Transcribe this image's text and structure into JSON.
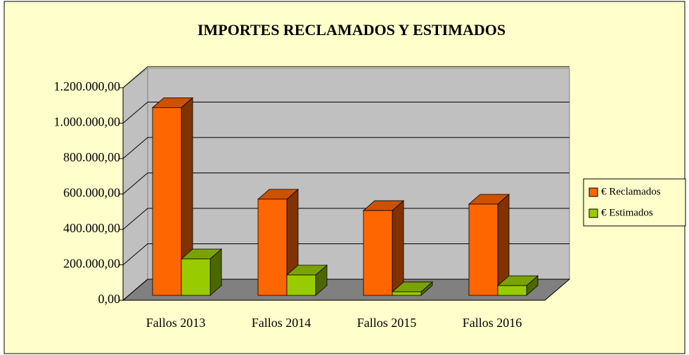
{
  "chart_data": {
    "type": "bar3d",
    "title": "IMPORTES RECLAMADOS Y ESTIMADOS",
    "categories": [
      "Fallos 2013",
      "Fallos 2014",
      "Fallos 2015",
      "Fallos 2016"
    ],
    "series": [
      {
        "name": "€ Reclamados",
        "color": "#ff6600",
        "values": [
          1060000,
          543000,
          479000,
          515000
        ]
      },
      {
        "name": "€ Estimados",
        "color": "#99cc00",
        "values": [
          206000,
          115000,
          20000,
          55000
        ]
      }
    ],
    "ylim": [
      0,
      1200000
    ],
    "yticks": [
      {
        "value": 0,
        "label": "0,00"
      },
      {
        "value": 200000,
        "label": "200.000,00"
      },
      {
        "value": 400000,
        "label": "400.000,00"
      },
      {
        "value": 600000,
        "label": "600.000,00"
      },
      {
        "value": 800000,
        "label": "800.000,00"
      },
      {
        "value": 1000000,
        "label": "1.000.000,00"
      },
      {
        "value": 1200000,
        "label": "1.200.000,00"
      }
    ],
    "grid": true,
    "legend": "right"
  }
}
